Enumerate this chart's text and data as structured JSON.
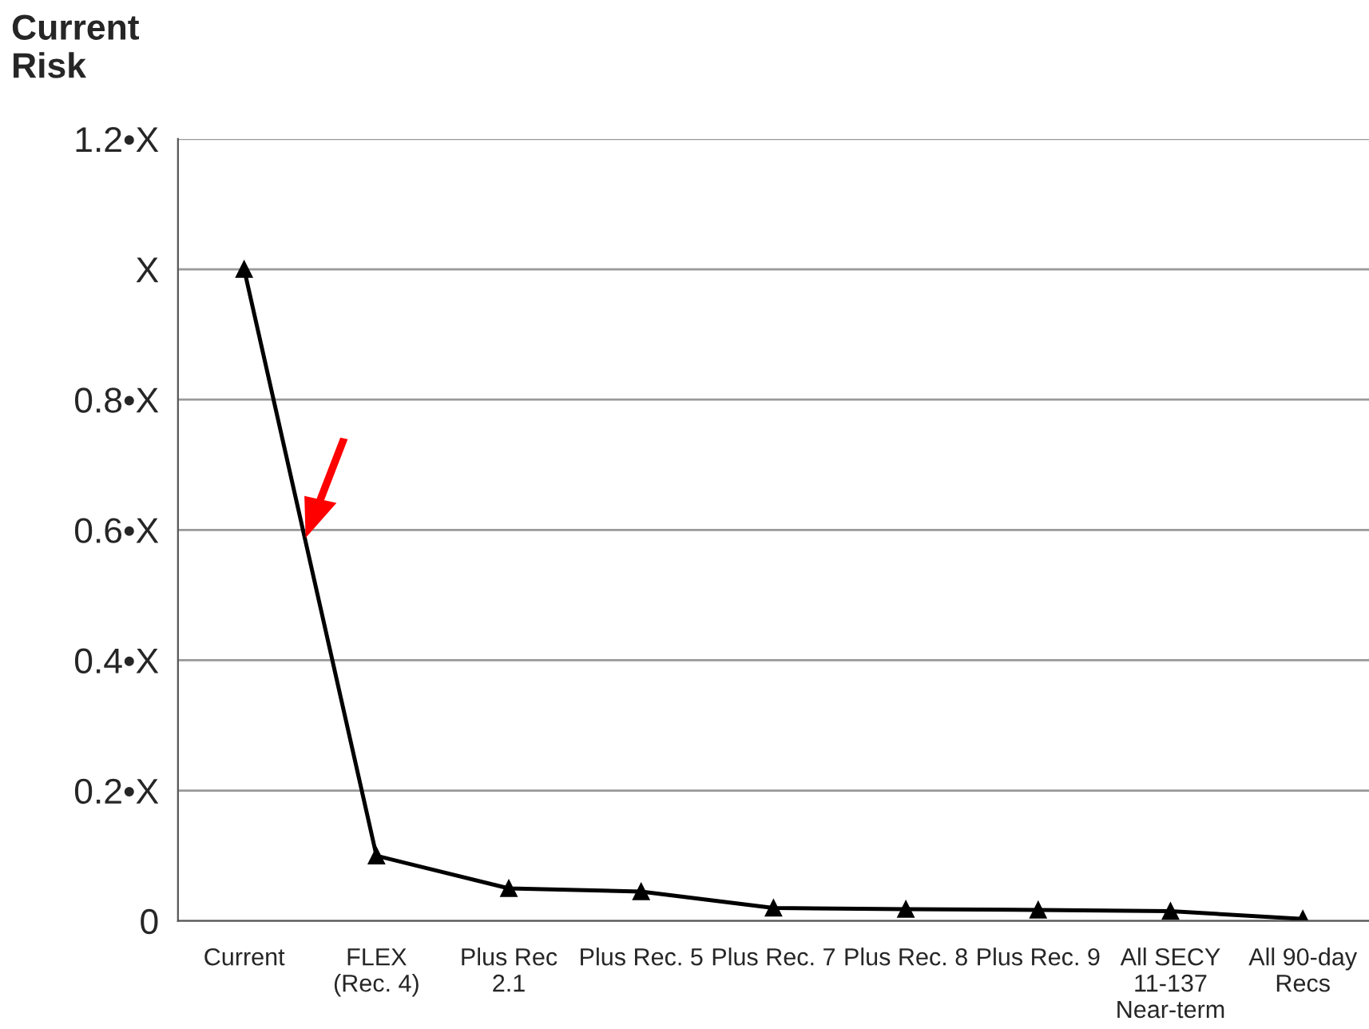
{
  "chart_data": {
    "type": "line",
    "ylabel": "Current\nRisk",
    "categories": [
      "Current",
      "FLEX\n(Rec. 4)",
      "Plus Rec\n2.1",
      "Plus Rec. 5",
      "Plus Rec. 7",
      "Plus Rec. 8",
      "Plus Rec. 9",
      "All SECY\n11-137\nNear-term",
      "All 90-day\nRecs"
    ],
    "series": [
      {
        "color": "#000000",
        "values": [
          1.0,
          0.1,
          0.05,
          0.045,
          0.02,
          0.018,
          0.017,
          0.015,
          0.003
        ]
      }
    ],
    "ylim": [
      0,
      1.2
    ],
    "yticks": [
      0,
      {
        "value": 0.2,
        "label": "0.2•X"
      },
      {
        "value": 0.4,
        "label": "0.4•X"
      },
      {
        "value": 0.6,
        "label": "0.6•X"
      },
      {
        "value": 0.8,
        "label": "0.8•X"
      },
      {
        "value": 1.0,
        "label": "X"
      },
      {
        "value": 1.2,
        "label": "1.2•X"
      }
    ],
    "grid": "y",
    "marker": "triangle",
    "line_style": "solid"
  }
}
